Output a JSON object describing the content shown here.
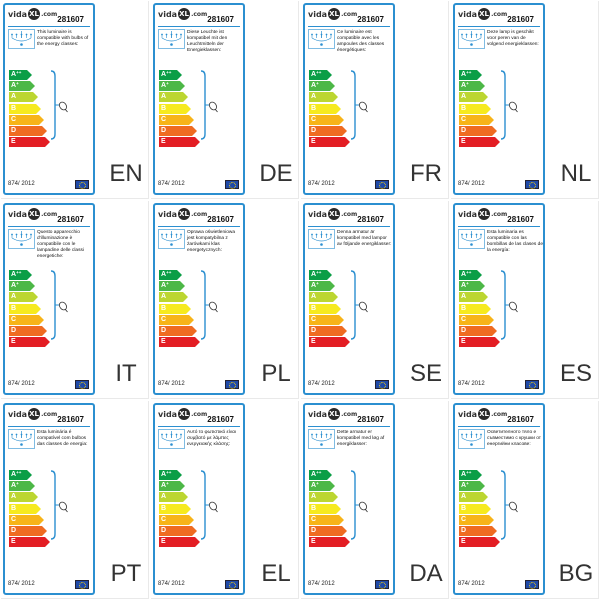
{
  "logo": {
    "pre": "vida",
    "mark": "XL",
    "post": ".com"
  },
  "product_code": "281607",
  "regulation": "874/ 2012",
  "classes": [
    {
      "letter": "A",
      "sup": "++",
      "color": "#0b9e46"
    },
    {
      "letter": "A",
      "sup": "+",
      "color": "#4db847"
    },
    {
      "letter": "A",
      "sup": "",
      "color": "#bcd630"
    },
    {
      "letter": "B",
      "sup": "",
      "color": "#f6ea1f"
    },
    {
      "letter": "C",
      "sup": "",
      "color": "#f7b419"
    },
    {
      "letter": "D",
      "sup": "",
      "color": "#ef6b21"
    },
    {
      "letter": "E",
      "sup": "",
      "color": "#e31e24"
    }
  ],
  "colors": {
    "border": "#2b8fd0",
    "bracket": "#2b8fd0"
  },
  "icons": {
    "lamp": "chandelier-icon",
    "bulb": "bulb-icon",
    "flag": "eu-flag-icon"
  },
  "labels": [
    {
      "code": "EN",
      "text": "This luminaire is compatible with bulbs of the energy classes:"
    },
    {
      "code": "DE",
      "text": "Diese Leuchte ist kompatibel mit den Leuchtmitteln der Energieklassen:"
    },
    {
      "code": "FR",
      "text": "Ce luminaire est compatible avec les ampoules des classes énergétiques:"
    },
    {
      "code": "NL",
      "text": "Deze lamp is geschikt voor peren van de volgend energieklassen:"
    },
    {
      "code": "IT",
      "text": "Questo apparecchio d'illuminazione è compatibile con le lampadine delle classi energetiche:"
    },
    {
      "code": "PL",
      "text": "Oprawa oświetleniowa jest kompatybilna z żarówkami klas energetycznych:"
    },
    {
      "code": "SE",
      "text": "Denna armatur är kompatibel med lampor av följande energiklasser:"
    },
    {
      "code": "ES",
      "text": "Esta luminaria es compatible con las bombillas de las clases de la energía:"
    },
    {
      "code": "PT",
      "text": "Esta luminária é compatível com bulbos das classes de energia:"
    },
    {
      "code": "EL",
      "text": "Αυτό το φωτιστικό είναι συμβατό με λάμπες ενεργειακής κλάσης:"
    },
    {
      "code": "DA",
      "text": "Dette armatur er kompatibel med løg af energiklasser:"
    },
    {
      "code": "BG",
      "text": "Осветителното тяло е съвместимо с крушки от енергийни класове:"
    }
  ]
}
